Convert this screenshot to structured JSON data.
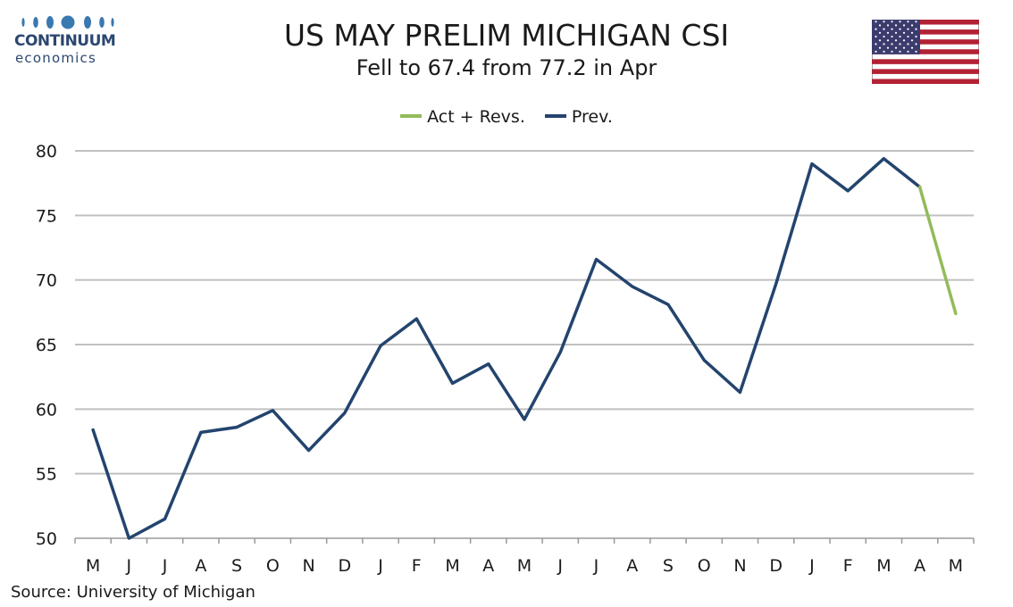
{
  "logo": {
    "name": "CONTINUUM",
    "sub": "economics"
  },
  "title": "US MAY PRELIM MICHIGAN CSI",
  "subtitle": "Fell to 67.4 from 77.2 in Apr",
  "source": "Source: University of Michigan",
  "colors": {
    "prev": "#23446e",
    "act": "#92bb5a",
    "grid": "#c0c0c0",
    "logo": "#2b4770"
  },
  "icons": {
    "flag": "us-flag-icon"
  },
  "chart_data": {
    "type": "line",
    "categories": [
      "M",
      "J",
      "J",
      "A",
      "S",
      "O",
      "N",
      "D",
      "J",
      "F",
      "M",
      "A",
      "M",
      "J",
      "J",
      "A",
      "S",
      "O",
      "N",
      "D",
      "J",
      "F",
      "M",
      "A",
      "M"
    ],
    "ylim": [
      50,
      80
    ],
    "yticks": [
      50,
      55,
      60,
      65,
      70,
      75,
      80
    ],
    "grid": true,
    "legend_placement": "top-center",
    "series": [
      {
        "name": "Act + Revs.",
        "color": "#92bb5a",
        "values": [
          null,
          null,
          null,
          null,
          null,
          null,
          null,
          null,
          null,
          null,
          null,
          null,
          null,
          null,
          null,
          null,
          null,
          null,
          null,
          null,
          null,
          null,
          null,
          77.2,
          67.4
        ]
      },
      {
        "name": "Prev.",
        "color": "#23446e",
        "values": [
          58.4,
          50.0,
          51.5,
          58.2,
          58.6,
          59.9,
          56.8,
          59.7,
          64.9,
          67.0,
          62.0,
          63.5,
          59.2,
          64.4,
          71.6,
          69.5,
          68.1,
          63.8,
          61.3,
          69.7,
          79.0,
          76.9,
          79.4,
          77.2,
          null
        ]
      }
    ]
  }
}
